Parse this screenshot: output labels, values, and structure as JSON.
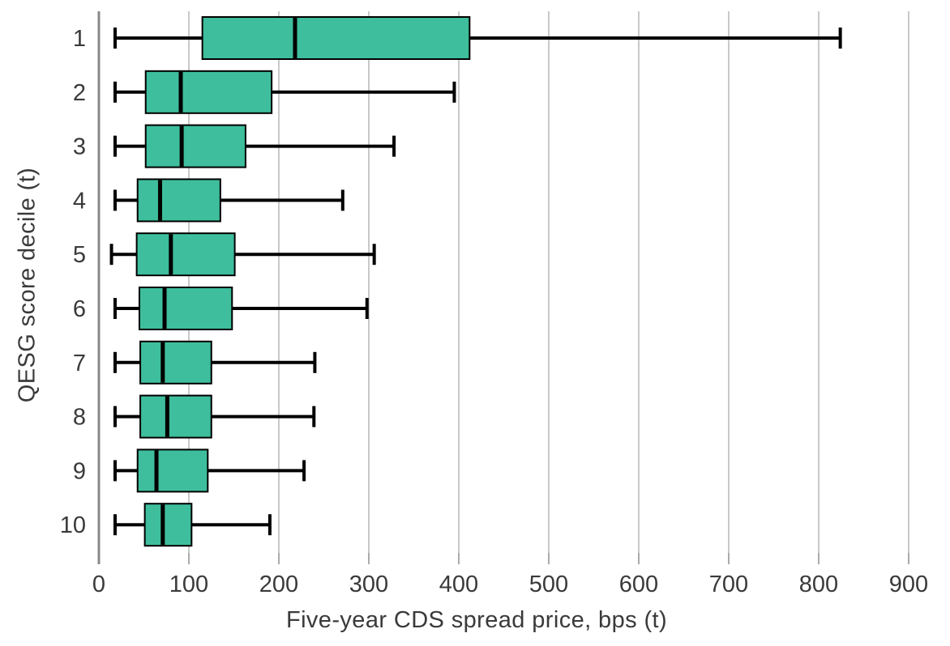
{
  "chart_data": {
    "type": "boxplot",
    "orientation": "horizontal",
    "title": "",
    "xlabel": "Five-year CDS spread price, bps (t)",
    "ylabel": "QESG score decile (t)",
    "categories": [
      "1",
      "2",
      "3",
      "4",
      "5",
      "6",
      "7",
      "8",
      "9",
      "10"
    ],
    "x_ticks": [
      0,
      100,
      200,
      300,
      400,
      500,
      600,
      700,
      800,
      900
    ],
    "xlim": [
      0,
      945
    ],
    "grid": "vertical-gridlines",
    "legend": "none",
    "series": [
      {
        "decile": "1",
        "whisker_low": 18,
        "q1": 115,
        "median": 218,
        "q3": 412,
        "whisker_high": 824
      },
      {
        "decile": "2",
        "whisker_low": 18,
        "q1": 52,
        "median": 91,
        "q3": 192,
        "whisker_high": 395
      },
      {
        "decile": "3",
        "whisker_low": 18,
        "q1": 52,
        "median": 92,
        "q3": 163,
        "whisker_high": 328
      },
      {
        "decile": "4",
        "whisker_low": 18,
        "q1": 43,
        "median": 68,
        "q3": 135,
        "whisker_high": 271
      },
      {
        "decile": "5",
        "whisker_low": 14,
        "q1": 42,
        "median": 80,
        "q3": 151,
        "whisker_high": 306
      },
      {
        "decile": "6",
        "whisker_low": 18,
        "q1": 45,
        "median": 73,
        "q3": 148,
        "whisker_high": 298
      },
      {
        "decile": "7",
        "whisker_low": 18,
        "q1": 46,
        "median": 71,
        "q3": 125,
        "whisker_high": 240
      },
      {
        "decile": "8",
        "whisker_low": 18,
        "q1": 46,
        "median": 76,
        "q3": 125,
        "whisker_high": 239
      },
      {
        "decile": "9",
        "whisker_low": 18,
        "q1": 43,
        "median": 64,
        "q3": 121,
        "whisker_high": 228
      },
      {
        "decile": "10",
        "whisker_low": 18,
        "q1": 51,
        "median": 71,
        "q3": 103,
        "whisker_high": 190
      }
    ],
    "colors": {
      "box_fill": "#3EBE9D",
      "box_border": "#000000",
      "median": "#000000",
      "whisker": "#000000",
      "gridline": "#C9C9C9",
      "axis_spine": "#8A8A8A",
      "tick_mark": "#ABABAB",
      "text": "#3A3A3A",
      "background": "#FFFFFF"
    }
  }
}
